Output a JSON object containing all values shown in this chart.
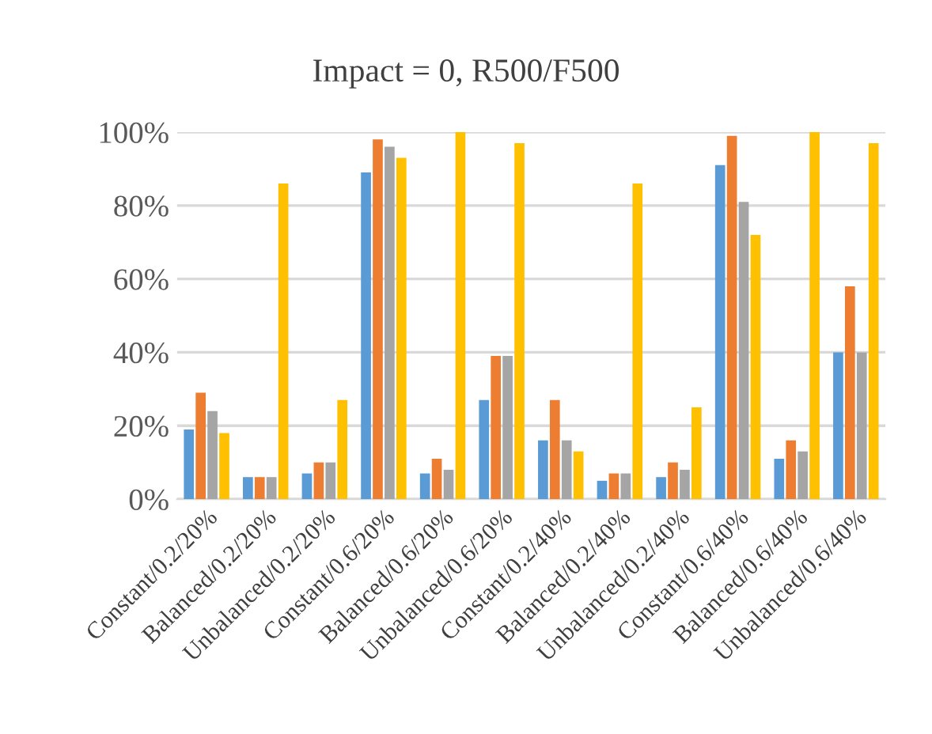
{
  "chart_data": {
    "type": "bar",
    "title": "Impact = 0, R500/F500",
    "categories": [
      "Constant/0.2/20%",
      "Balanced/0.2/20%",
      "Unbalanced/0.2/20%",
      "Constant/0.6/20%",
      "Balanced/0.6/20%",
      "Unbalanced/0.6/20%",
      "Constant/0.2/40%",
      "Balanced/0.2/40%",
      "Unbalanced/0.2/40%",
      "Constant/0.6/40%",
      "Balanced/0.6/40%",
      "Unbalanced/0.6/40%"
    ],
    "series": [
      {
        "color": "#5b9bd5",
        "values": [
          19,
          6,
          7,
          89,
          7,
          27,
          16,
          5,
          6,
          91,
          11,
          40
        ]
      },
      {
        "color": "#ed7d31",
        "values": [
          29,
          6,
          10,
          98,
          11,
          39,
          27,
          7,
          10,
          99,
          16,
          58
        ]
      },
      {
        "color": "#a5a5a5",
        "values": [
          24,
          6,
          10,
          96,
          8,
          39,
          16,
          7,
          8,
          81,
          13,
          40
        ]
      },
      {
        "color": "#ffc000",
        "values": [
          18,
          86,
          27,
          93,
          100,
          97,
          13,
          86,
          25,
          72,
          100,
          97
        ]
      }
    ],
    "ylim": [
      0,
      100
    ],
    "yticks": [
      {
        "value": 0,
        "label": "0%"
      },
      {
        "value": 20,
        "label": "20%"
      },
      {
        "value": 40,
        "label": "40%"
      },
      {
        "value": 60,
        "label": "60%"
      },
      {
        "value": 80,
        "label": "80%"
      },
      {
        "value": 100,
        "label": "100%"
      }
    ],
    "grid": "y"
  }
}
